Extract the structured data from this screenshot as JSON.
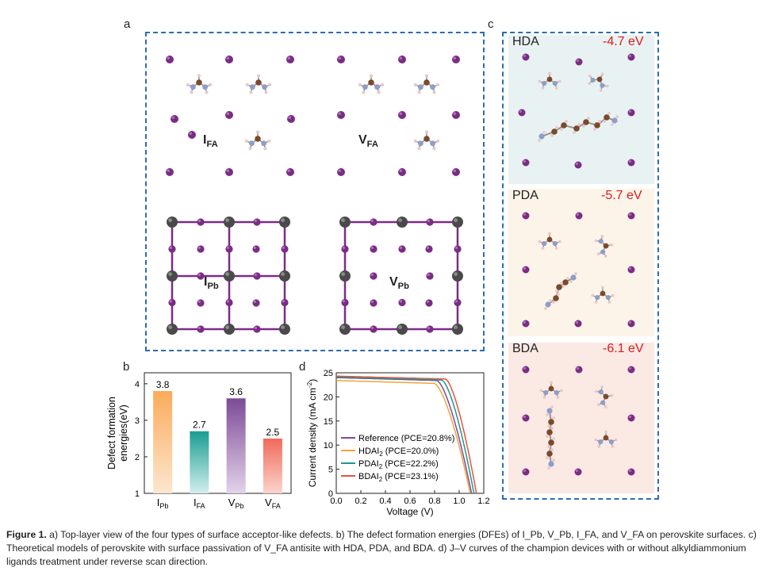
{
  "panel_labels": {
    "a": "a",
    "b": "b",
    "c": "c",
    "d": "d"
  },
  "panel_a": {
    "defects": [
      {
        "name": "I",
        "sub": "FA"
      },
      {
        "name": "V",
        "sub": "FA"
      },
      {
        "name": "I",
        "sub": "Pb"
      },
      {
        "name": "V",
        "sub": "Pb"
      }
    ]
  },
  "panel_c": {
    "models": [
      {
        "name": "HDA",
        "energy": "-4.7 eV",
        "bg": "#e8f2f2"
      },
      {
        "name": "PDA",
        "energy": "-5.7 eV",
        "bg": "#fdf4e9"
      },
      {
        "name": "BDA",
        "energy": "-6.1 eV",
        "bg": "#fbe9e4"
      }
    ]
  },
  "colors": {
    "frame": "#2a6db3",
    "iodine": "#7b2c86",
    "carbon": "#7a4a2a",
    "nitrogen": "#8c9ec9",
    "hydrogen": "#e8c9c9",
    "lead": "#4a4a4a",
    "energy": "#e0191c"
  },
  "chart_data": [
    {
      "type": "bar",
      "ylabel": "Defect formation energies(eV)",
      "ylim": [
        1,
        4.3
      ],
      "yticks": [
        "1",
        "2",
        "3",
        "4"
      ],
      "categories": [
        {
          "name": "I",
          "sub": "Pb"
        },
        {
          "name": "I",
          "sub": "FA"
        },
        {
          "name": "V",
          "sub": "Pb"
        },
        {
          "name": "V",
          "sub": "FA"
        }
      ],
      "values": [
        3.8,
        2.7,
        3.6,
        2.5
      ],
      "labels": [
        "3.8",
        "2.7",
        "3.6",
        "2.5"
      ],
      "colors": [
        [
          "#fbab5b",
          "#fde6cf"
        ],
        [
          "#1a9d92",
          "#d3eeec"
        ],
        [
          "#7d4a97",
          "#e2d3ea"
        ],
        [
          "#f06a5a",
          "#fbd4cc"
        ]
      ]
    },
    {
      "type": "line",
      "xlabel": "Voltage (V)",
      "ylabel": "Current density (mA cm",
      "ylabel_sup": "-2",
      "ylabel_end": ")",
      "xlim": [
        0,
        1.2
      ],
      "ylim": [
        0,
        25
      ],
      "xticks": [
        "0.0",
        "0.2",
        "0.4",
        "0.6",
        "0.8",
        "1.0",
        "1.2"
      ],
      "yticks": [
        "0",
        "5",
        "10",
        "15",
        "20",
        "25"
      ],
      "series": [
        {
          "name": "Reference (PCE=20.8%)",
          "color": "#7b4aa0",
          "jsc": 24.0,
          "voc": 1.1,
          "bend": 0.82
        },
        {
          "name": "HDAI",
          "sub": "2",
          "tail": " (PCE=20.0%)",
          "color": "#f2a33a",
          "jsc": 23.4,
          "voc": 1.09,
          "bend": 0.8
        },
        {
          "name": "PDAI",
          "sub": "2",
          "tail": " (PCE=22.2%)",
          "color": "#1b9a8e",
          "jsc": 24.1,
          "voc": 1.12,
          "bend": 0.86
        },
        {
          "name": "BDAI",
          "sub": "2",
          "tail": " (PCE=23.1%)",
          "color": "#e8533a",
          "jsc": 24.3,
          "voc": 1.14,
          "bend": 0.89
        }
      ]
    }
  ],
  "caption": {
    "figure_label": "Figure 1.",
    "text": " a) Top-layer view of the four types of surface acceptor-like defects. b) The defect formation energies (DFEs) of I_Pb, V_Pb, I_FA, and V_FA on perovskite surfaces. c) Theoretical models of perovskite with surface passivation of V_FA antisite with HDA, PDA, and BDA. d) J–V curves of the champion devices with or without alkyldiammonium ligands treatment under reverse scan direction."
  }
}
